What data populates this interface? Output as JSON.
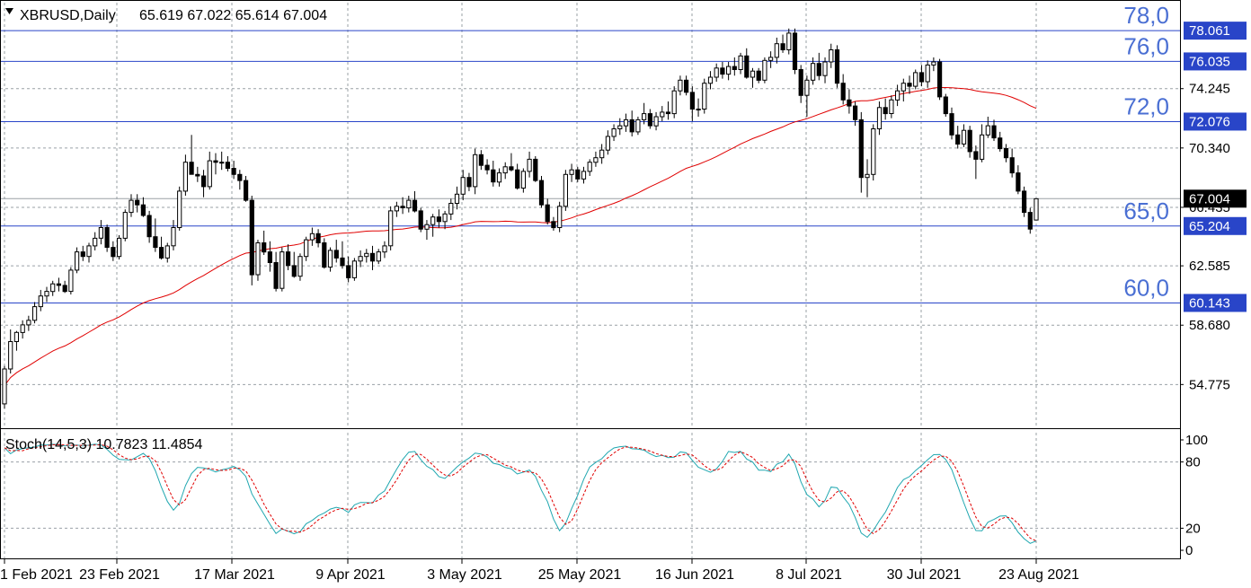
{
  "header": {
    "symbol_timeframe": "XBRUSD,Daily",
    "ohlc": "65.619 67.022 65.614 67.004",
    "dropdown_icon": "triangle-down-icon"
  },
  "indicator_label": "Stoch(14,5,3) 10.7823 11.4854",
  "colors": {
    "bull_body": "#ffffff",
    "bear_body": "#000000",
    "ma": "#e00000",
    "stoch_main": "#1fa7b0",
    "stoch_signal": "#e00000",
    "level_line": "#2945c8",
    "level_text": "#4a6fd3",
    "grid": "#9aa0a6",
    "current_label_bg": "#000000",
    "level_label_bg": "#2945c8"
  },
  "chart_data": [
    {
      "type": "candlestick",
      "title": "XBRUSD,Daily",
      "x_ticks": [
        "1 Feb 2021",
        "23 Feb 2021",
        "17 Mar 2021",
        "9 Apr 2021",
        "3 May 2021",
        "25 May 2021",
        "16 Jun 2021",
        "8 Jul 2021",
        "30 Jul 2021",
        "23 Aug 2021"
      ],
      "y_ticks": [
        "74.245",
        "70.340",
        "66.435",
        "62.585",
        "58.680",
        "54.775"
      ],
      "ylim": [
        51.9,
        79.9
      ],
      "grid": true,
      "levels": [
        {
          "price": 78.061,
          "label": "78.061",
          "tag": "78,0"
        },
        {
          "price": 76.035,
          "label": "76.035",
          "tag": "76,0"
        },
        {
          "price": 72.076,
          "label": "72.076",
          "tag": "72,0"
        },
        {
          "price": 65.204,
          "label": "65.204",
          "tag": "65,0"
        },
        {
          "price": 60.143,
          "label": "60.143",
          "tag": "60,0"
        }
      ],
      "current_price": {
        "value": 67.004,
        "label": "67.004"
      },
      "candles": [
        [
          53.5,
          56.0,
          53.2,
          55.8
        ],
        [
          55.8,
          58.4,
          55.5,
          57.6
        ],
        [
          57.6,
          58.3,
          57.0,
          58.2
        ],
        [
          58.2,
          59.0,
          57.8,
          58.7
        ],
        [
          58.7,
          59.3,
          58.3,
          59.0
        ],
        [
          59.0,
          60.2,
          58.8,
          59.9
        ],
        [
          59.9,
          61.0,
          59.6,
          60.6
        ],
        [
          60.6,
          61.2,
          60.2,
          60.9
        ],
        [
          60.9,
          61.6,
          60.6,
          61.4
        ],
        [
          61.4,
          61.8,
          60.9,
          61.3
        ],
        [
          61.3,
          61.6,
          60.8,
          60.9
        ],
        [
          60.9,
          62.5,
          60.7,
          62.3
        ],
        [
          62.3,
          63.8,
          62.1,
          63.5
        ],
        [
          63.5,
          63.9,
          62.9,
          63.2
        ],
        [
          63.2,
          64.1,
          62.8,
          63.9
        ],
        [
          63.9,
          64.8,
          63.6,
          64.4
        ],
        [
          64.4,
          65.6,
          64.0,
          65.1
        ],
        [
          65.1,
          65.3,
          63.5,
          63.8
        ],
        [
          63.8,
          64.2,
          62.9,
          63.2
        ],
        [
          63.2,
          64.6,
          63.0,
          64.4
        ],
        [
          64.4,
          66.3,
          64.2,
          66.1
        ],
        [
          66.1,
          67.3,
          65.8,
          66.9
        ],
        [
          66.9,
          67.3,
          66.1,
          66.6
        ],
        [
          66.6,
          67.1,
          65.8,
          65.9
        ],
        [
          65.9,
          66.2,
          64.1,
          64.5
        ],
        [
          64.5,
          65.7,
          63.5,
          63.8
        ],
        [
          63.8,
          64.5,
          63.0,
          63.1
        ],
        [
          63.1,
          64.1,
          62.8,
          63.9
        ],
        [
          63.9,
          65.6,
          63.6,
          65.1
        ],
        [
          65.1,
          67.8,
          64.9,
          67.5
        ],
        [
          67.5,
          69.9,
          67.2,
          69.4
        ],
        [
          69.4,
          71.2,
          68.8,
          68.6
        ],
        [
          68.6,
          69.1,
          68.1,
          68.5
        ],
        [
          68.5,
          68.9,
          67.1,
          67.8
        ],
        [
          67.8,
          70.1,
          67.6,
          69.5
        ],
        [
          69.5,
          70.0,
          68.6,
          69.4
        ],
        [
          69.4,
          70.1,
          68.9,
          69.4
        ],
        [
          69.4,
          69.8,
          68.8,
          69.0
        ],
        [
          69.0,
          69.5,
          68.3,
          68.6
        ],
        [
          68.6,
          68.9,
          67.6,
          68.2
        ],
        [
          68.2,
          68.5,
          66.8,
          66.9
        ],
        [
          66.9,
          67.2,
          61.3,
          62.0
        ],
        [
          62.0,
          64.3,
          61.6,
          64.1
        ],
        [
          64.1,
          64.9,
          63.3,
          63.5
        ],
        [
          63.5,
          64.2,
          62.2,
          62.8
        ],
        [
          62.8,
          63.5,
          60.9,
          61.1
        ],
        [
          61.1,
          63.8,
          60.9,
          63.5
        ],
        [
          63.5,
          64.0,
          62.3,
          62.6
        ],
        [
          62.6,
          63.5,
          61.8,
          61.9
        ],
        [
          61.9,
          63.4,
          61.6,
          63.2
        ],
        [
          63.2,
          64.5,
          62.9,
          64.3
        ],
        [
          64.3,
          65.1,
          63.9,
          64.7
        ],
        [
          64.7,
          65.0,
          63.8,
          64.1
        ],
        [
          64.1,
          64.4,
          62.4,
          62.5
        ],
        [
          62.5,
          63.8,
          62.2,
          63.6
        ],
        [
          63.6,
          64.3,
          62.8,
          63.1
        ],
        [
          63.1,
          64.2,
          62.4,
          62.6
        ],
        [
          62.6,
          63.2,
          61.5,
          61.8
        ],
        [
          61.8,
          63.1,
          61.6,
          62.9
        ],
        [
          62.9,
          63.6,
          62.5,
          63.2
        ],
        [
          63.2,
          63.7,
          62.8,
          63.4
        ],
        [
          63.4,
          63.9,
          62.3,
          62.9
        ],
        [
          62.9,
          63.7,
          62.7,
          63.5
        ],
        [
          63.5,
          64.2,
          63.1,
          63.9
        ],
        [
          63.9,
          66.5,
          63.6,
          66.2
        ],
        [
          66.2,
          66.8,
          65.8,
          66.5
        ],
        [
          66.5,
          67.1,
          66.0,
          66.4
        ],
        [
          66.4,
          67.2,
          66.1,
          66.9
        ],
        [
          66.9,
          67.5,
          66.1,
          66.2
        ],
        [
          66.2,
          66.4,
          64.8,
          65.0
        ],
        [
          65.0,
          65.6,
          64.3,
          65.3
        ],
        [
          65.3,
          66.0,
          64.5,
          65.8
        ],
        [
          65.8,
          66.3,
          65.1,
          65.5
        ],
        [
          65.5,
          66.2,
          65.0,
          66.0
        ],
        [
          66.0,
          67.0,
          65.6,
          66.7
        ],
        [
          66.7,
          67.8,
          66.3,
          67.3
        ],
        [
          67.3,
          68.9,
          66.9,
          68.4
        ],
        [
          68.4,
          68.7,
          67.5,
          67.8
        ],
        [
          67.8,
          70.3,
          67.3,
          69.9
        ],
        [
          69.9,
          70.2,
          68.9,
          69.2
        ],
        [
          69.2,
          69.6,
          68.6,
          68.9
        ],
        [
          68.9,
          69.5,
          67.8,
          68.1
        ],
        [
          68.1,
          69.0,
          67.8,
          68.7
        ],
        [
          68.7,
          69.4,
          68.3,
          69.1
        ],
        [
          69.1,
          70.0,
          68.8,
          68.9
        ],
        [
          68.9,
          69.3,
          67.6,
          67.7
        ],
        [
          67.7,
          69.0,
          67.4,
          68.8
        ],
        [
          68.8,
          70.1,
          68.4,
          69.6
        ],
        [
          69.6,
          69.8,
          68.1,
          68.2
        ],
        [
          68.2,
          68.5,
          66.4,
          66.6
        ],
        [
          66.6,
          67.0,
          65.3,
          65.5
        ],
        [
          65.5,
          65.8,
          64.9,
          65.1
        ],
        [
          65.1,
          66.8,
          64.8,
          66.5
        ],
        [
          66.5,
          68.9,
          66.2,
          68.6
        ],
        [
          68.6,
          69.3,
          68.1,
          68.9
        ],
        [
          68.9,
          69.1,
          68.1,
          68.3
        ],
        [
          68.3,
          69.1,
          68.0,
          68.8
        ],
        [
          68.8,
          69.6,
          68.5,
          69.4
        ],
        [
          69.4,
          70.1,
          69.1,
          69.7
        ],
        [
          69.7,
          70.6,
          69.3,
          70.2
        ],
        [
          70.2,
          71.5,
          69.9,
          71.1
        ],
        [
          71.1,
          71.9,
          70.8,
          71.6
        ],
        [
          71.6,
          72.3,
          71.2,
          71.8
        ],
        [
          71.8,
          72.6,
          71.4,
          72.2
        ],
        [
          72.2,
          72.8,
          71.1,
          71.4
        ],
        [
          71.4,
          72.4,
          71.2,
          72.2
        ],
        [
          72.2,
          73.3,
          71.9,
          72.6
        ],
        [
          72.6,
          72.9,
          71.6,
          71.8
        ],
        [
          71.8,
          72.7,
          71.5,
          72.4
        ],
        [
          72.4,
          73.1,
          72.1,
          72.7
        ],
        [
          72.7,
          73.4,
          72.2,
          72.6
        ],
        [
          72.6,
          74.4,
          72.3,
          74.1
        ],
        [
          74.1,
          75.1,
          73.8,
          74.8
        ],
        [
          74.8,
          75.1,
          73.8,
          74.0
        ],
        [
          74.0,
          74.4,
          72.1,
          72.9
        ],
        [
          72.9,
          73.6,
          72.4,
          72.9
        ],
        [
          72.9,
          74.9,
          72.6,
          74.6
        ],
        [
          74.6,
          75.4,
          74.2,
          75.0
        ],
        [
          75.0,
          75.9,
          74.7,
          75.6
        ],
        [
          75.6,
          76.0,
          74.9,
          75.2
        ],
        [
          75.2,
          76.0,
          74.8,
          75.7
        ],
        [
          75.7,
          76.3,
          75.1,
          75.5
        ],
        [
          75.5,
          76.6,
          75.2,
          76.4
        ],
        [
          76.4,
          76.9,
          74.9,
          75.0
        ],
        [
          75.0,
          75.6,
          74.3,
          75.4
        ],
        [
          75.4,
          75.6,
          74.6,
          74.8
        ],
        [
          74.8,
          76.3,
          74.6,
          76.1
        ],
        [
          76.1,
          76.7,
          75.6,
          76.3
        ],
        [
          76.3,
          77.6,
          75.9,
          77.2
        ],
        [
          77.2,
          77.8,
          76.6,
          76.8
        ],
        [
          76.8,
          78.2,
          76.5,
          77.9
        ],
        [
          77.9,
          78.2,
          75.2,
          75.5
        ],
        [
          75.5,
          75.8,
          73.3,
          73.8
        ],
        [
          73.8,
          75.1,
          72.4,
          74.8
        ],
        [
          74.8,
          76.3,
          74.5,
          75.9
        ],
        [
          75.9,
          76.6,
          74.8,
          75.1
        ],
        [
          75.1,
          76.3,
          74.6,
          76.0
        ],
        [
          76.0,
          77.2,
          75.6,
          76.8
        ],
        [
          76.8,
          77.1,
          74.3,
          74.6
        ],
        [
          74.6,
          75.2,
          73.2,
          73.5
        ],
        [
          73.5,
          74.2,
          72.6,
          73.1
        ],
        [
          73.1,
          73.4,
          71.8,
          72.2
        ],
        [
          72.2,
          72.7,
          67.4,
          68.4
        ],
        [
          68.4,
          69.6,
          67.1,
          68.6
        ],
        [
          68.6,
          71.9,
          68.2,
          71.6
        ],
        [
          71.6,
          73.4,
          71.2,
          73.0
        ],
        [
          73.0,
          73.6,
          72.2,
          72.6
        ],
        [
          72.6,
          73.8,
          72.3,
          73.5
        ],
        [
          73.5,
          74.5,
          73.1,
          74.1
        ],
        [
          74.1,
          74.9,
          73.4,
          74.6
        ],
        [
          74.6,
          75.1,
          73.9,
          74.4
        ],
        [
          74.4,
          75.5,
          74.2,
          75.3
        ],
        [
          75.3,
          75.8,
          74.4,
          74.7
        ],
        [
          74.7,
          76.1,
          74.3,
          75.8
        ],
        [
          75.8,
          76.3,
          75.4,
          76.0
        ],
        [
          76.0,
          76.2,
          73.5,
          73.7
        ],
        [
          73.7,
          73.9,
          72.4,
          72.6
        ],
        [
          72.6,
          73.0,
          70.9,
          71.2
        ],
        [
          71.2,
          71.8,
          70.3,
          70.6
        ],
        [
          70.6,
          71.9,
          70.4,
          71.5
        ],
        [
          71.5,
          71.8,
          69.7,
          70.1
        ],
        [
          70.1,
          70.5,
          68.3,
          69.6
        ],
        [
          69.6,
          71.9,
          69.4,
          71.2
        ],
        [
          71.2,
          72.4,
          71.0,
          71.8
        ],
        [
          71.8,
          72.2,
          70.8,
          71.0
        ],
        [
          71.0,
          71.4,
          70.1,
          70.3
        ],
        [
          70.3,
          70.6,
          69.4,
          69.7
        ],
        [
          69.7,
          70.3,
          68.4,
          68.7
        ],
        [
          68.7,
          69.2,
          67.3,
          67.5
        ],
        [
          67.5,
          67.8,
          65.8,
          66.1
        ],
        [
          66.1,
          66.4,
          64.7,
          65.0
        ],
        [
          65.6,
          67.0,
          65.6,
          67.0
        ]
      ],
      "ma_period": 50
    },
    {
      "type": "line",
      "title": "Stoch(14,5,3) 10.7823 11.4854",
      "y_ticks": [
        "100",
        "80",
        "20",
        "0"
      ],
      "ylim": [
        0,
        100
      ],
      "series": [
        {
          "name": "10.7823",
          "role": "main"
        },
        {
          "name": "11.4854",
          "role": "signal"
        }
      ],
      "stoch_params": [
        14,
        5,
        3
      ]
    }
  ]
}
